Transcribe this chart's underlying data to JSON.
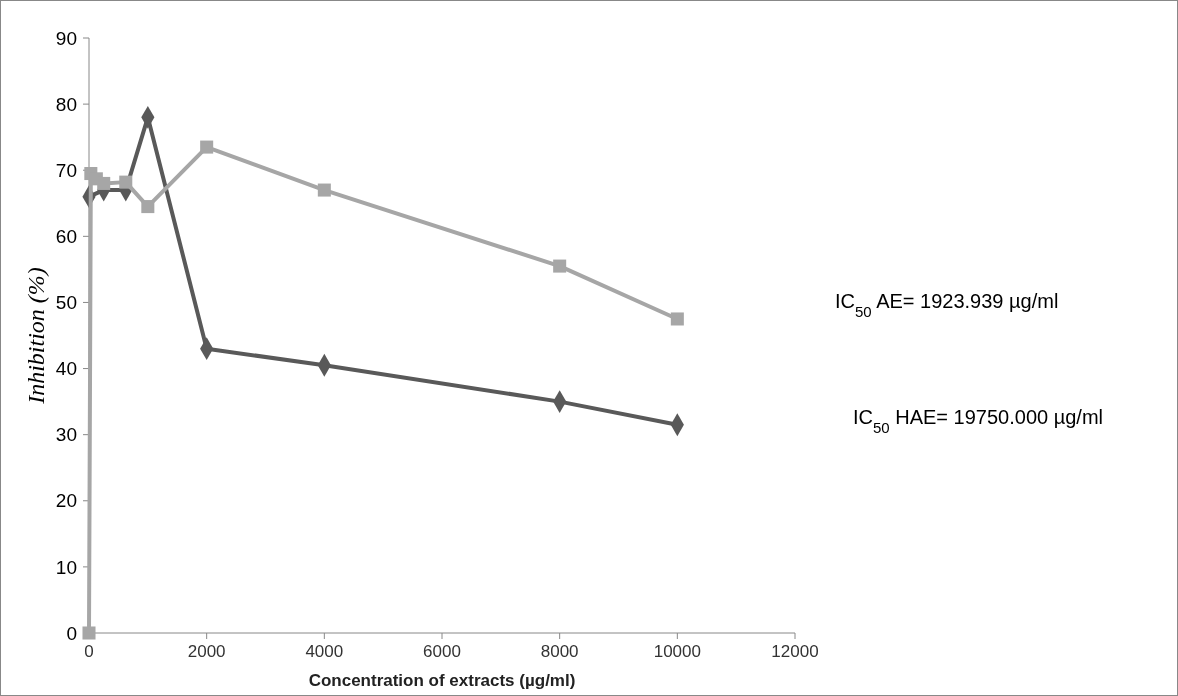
{
  "chart_data": {
    "type": "line",
    "xlabel": "Concentration of extracts (µg/ml)",
    "ylabel": "Inhibition (%)",
    "xlim": [
      0,
      12000
    ],
    "xticks": [
      0,
      2000,
      4000,
      6000,
      8000,
      10000,
      12000
    ],
    "ylim": [
      0,
      90
    ],
    "yticks": [
      0,
      10,
      20,
      30,
      40,
      50,
      60,
      70,
      80,
      90
    ],
    "grid": false,
    "line_style": "solid",
    "series": [
      {
        "color": "#a6a6a6",
        "marker": "square",
        "x": [
          0,
          31.25,
          125,
          250,
          625,
          1000,
          2000,
          4000,
          8000,
          10000
        ],
        "values": [
          0,
          69.5,
          68.7,
          68,
          68.2,
          64.5,
          73.5,
          67,
          55.5,
          47.5
        ]
      },
      {
        "color": "#595959",
        "marker": "diamond",
        "x": [
          0,
          250,
          625,
          1000,
          2000,
          4000,
          8000,
          10000
        ],
        "values": [
          66,
          67,
          67,
          78,
          43,
          40.5,
          35,
          31.5
        ]
      }
    ],
    "annotations": [
      "IC$_{50}$ AE= 1923.939 µg/ml",
      "IC$_{50}$ HAE= 19750.000 µg/ml"
    ]
  }
}
